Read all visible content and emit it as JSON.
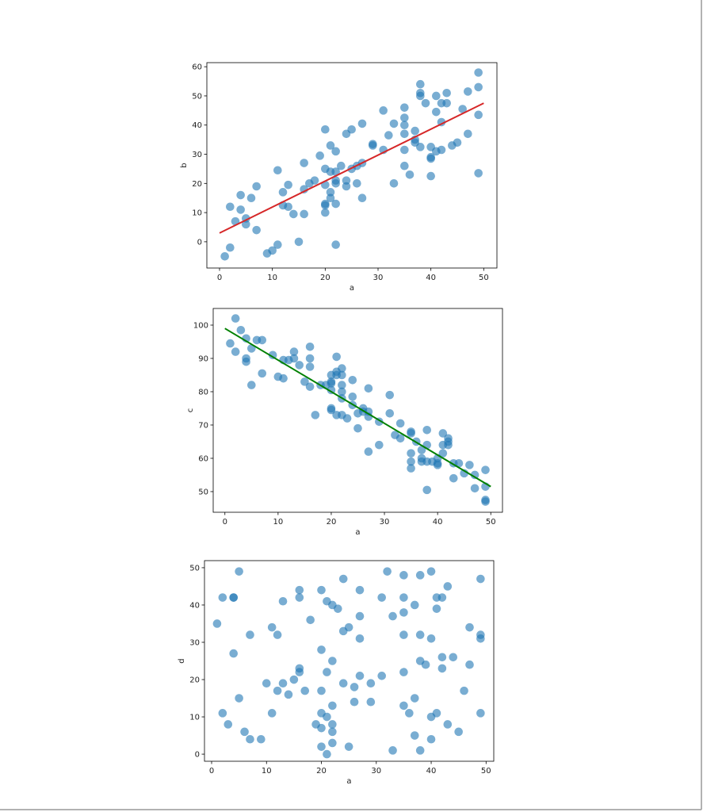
{
  "chart_data": [
    {
      "type": "scatter",
      "xlabel": "a",
      "ylabel": "b",
      "color": "#1f77b4",
      "x": [
        1,
        2,
        2,
        3,
        4,
        4,
        5,
        5,
        6,
        7,
        7,
        9,
        10,
        11,
        11,
        12,
        12,
        13,
        13,
        14,
        15,
        16,
        16,
        16,
        17,
        18,
        19,
        20,
        20,
        20,
        20,
        20,
        20,
        21,
        21,
        21,
        21,
        22,
        22,
        22,
        22,
        22,
        22,
        23,
        24,
        24,
        24,
        25,
        25,
        26,
        26,
        27,
        27,
        27,
        29,
        29,
        31,
        31,
        32,
        33,
        33,
        35,
        35,
        35,
        35,
        35,
        35,
        36,
        37,
        37,
        37,
        38,
        38,
        38,
        38,
        39,
        40,
        40,
        40,
        40,
        41,
        41,
        41,
        42,
        42,
        42,
        43,
        43,
        44,
        45,
        46,
        47,
        47,
        49,
        49,
        49,
        49
      ],
      "values": [
        -5,
        -2,
        12,
        7,
        11,
        16,
        6,
        8,
        15,
        19,
        4,
        -4,
        -3,
        -1,
        24.5,
        12.5,
        17,
        19.5,
        12,
        9.5,
        0,
        9.5,
        18,
        27,
        20,
        21,
        29.5,
        38.5,
        10,
        12.5,
        13,
        19.5,
        25,
        15,
        17,
        24,
        33,
        -1,
        13,
        20,
        21,
        24,
        31,
        26,
        19,
        21,
        37,
        25,
        38.5,
        26,
        20,
        15,
        27,
        40.5,
        33,
        33.5,
        31.5,
        45,
        36.5,
        20,
        40.5,
        26,
        31.5,
        37,
        40,
        42.5,
        46,
        23,
        34,
        35,
        38,
        32.5,
        50,
        54,
        51,
        47.5,
        22.5,
        28.5,
        29,
        32.5,
        31,
        44.5,
        50,
        31.5,
        41,
        47.5,
        47.5,
        51,
        33,
        34,
        45.5,
        37,
        51.5,
        23.5,
        43.5,
        53,
        58
      ],
      "fit_line": {
        "x": [
          0,
          50
        ],
        "y": [
          3,
          47.5
        ],
        "color": "#d62728"
      },
      "xlim": [
        -2.4,
        52.5
      ],
      "ylim": [
        -9,
        61.4
      ],
      "xticks": [
        0,
        10,
        20,
        30,
        40,
        50
      ],
      "yticks": [
        0,
        10,
        20,
        30,
        40,
        50,
        60
      ]
    },
    {
      "type": "scatter",
      "xlabel": "a",
      "ylabel": "c",
      "color": "#1f77b4",
      "x": [
        1,
        2,
        2,
        3,
        4,
        4,
        4,
        5,
        5,
        6,
        7,
        7,
        9,
        10,
        11,
        11,
        12,
        13,
        13,
        14,
        15,
        16,
        16,
        16,
        16,
        17,
        18,
        19,
        20,
        20,
        20,
        20,
        20,
        20,
        21,
        21,
        21,
        21,
        22,
        22,
        22,
        22,
        22,
        22,
        23,
        24,
        24,
        24,
        25,
        25,
        26,
        26,
        27,
        27,
        27,
        27,
        29,
        29,
        31,
        31,
        32,
        33,
        33,
        35,
        35,
        35,
        35,
        35,
        36,
        37,
        37,
        37,
        38,
        38,
        38,
        38,
        39,
        40,
        40,
        40,
        41,
        41,
        41,
        42,
        42,
        42,
        43,
        43,
        44,
        45,
        46,
        47,
        47,
        49,
        49,
        49,
        49
      ],
      "values": [
        94.5,
        102,
        92,
        98.5,
        96,
        89,
        90,
        82,
        93,
        95.5,
        95.5,
        85.5,
        91,
        84.5,
        84,
        89.5,
        89.5,
        92,
        90,
        88,
        83,
        93.5,
        87.5,
        81.5,
        90,
        73,
        82,
        82,
        85,
        83,
        82.5,
        75,
        74.5,
        80.5,
        85,
        90.5,
        73,
        86,
        87,
        85,
        82,
        80,
        78,
        73,
        72,
        83.5,
        78.5,
        76,
        73.5,
        69,
        75,
        74,
        81,
        74,
        62,
        72.5,
        71,
        64,
        79,
        73.5,
        67,
        70.5,
        66,
        68,
        67.5,
        61.5,
        59,
        57,
        65,
        59,
        60,
        62.5,
        68.5,
        64,
        59,
        50.5,
        59,
        60,
        58.5,
        58,
        67.5,
        61.5,
        64,
        64,
        66,
        65,
        54,
        58.5,
        58.5,
        55.5,
        58,
        51,
        55,
        56.5,
        51.5,
        47.5,
        47
      ],
      "fit_line": {
        "x": [
          0,
          50
        ],
        "y": [
          99,
          51.5
        ],
        "color": "#008000"
      },
      "xlim": [
        -2.2,
        52.2
      ],
      "ylim": [
        43.8,
        105
      ],
      "xticks": [
        0,
        10,
        20,
        30,
        40,
        50
      ],
      "yticks": [
        50,
        60,
        70,
        80,
        90,
        100
      ]
    },
    {
      "type": "scatter",
      "xlabel": "a",
      "ylabel": "d",
      "color": "#1f77b4",
      "x": [
        1,
        2,
        2,
        3,
        4,
        4,
        4,
        5,
        5,
        6,
        7,
        7,
        9,
        10,
        11,
        11,
        12,
        12,
        13,
        13,
        14,
        15,
        16,
        16,
        16,
        16,
        17,
        18,
        19,
        20,
        20,
        20,
        20,
        20,
        20,
        21,
        21,
        21,
        21,
        22,
        22,
        22,
        22,
        22,
        22,
        23,
        24,
        24,
        24,
        25,
        25,
        26,
        26,
        27,
        27,
        27,
        27,
        29,
        29,
        31,
        31,
        32,
        33,
        33,
        35,
        35,
        35,
        35,
        35,
        35,
        36,
        37,
        37,
        37,
        38,
        38,
        38,
        38,
        39,
        40,
        40,
        40,
        40,
        41,
        41,
        41,
        42,
        42,
        42,
        43,
        43,
        44,
        45,
        46,
        47,
        47,
        49,
        49,
        49,
        49
      ],
      "values": [
        35,
        42,
        11,
        8,
        42,
        42,
        27,
        49,
        15,
        6,
        32,
        4,
        4,
        19,
        34,
        11,
        32,
        17,
        41,
        19,
        16,
        20,
        44,
        42,
        23,
        22,
        17,
        36,
        8,
        44,
        28,
        17,
        11,
        7,
        2,
        41,
        22,
        10,
        0,
        40,
        25,
        13,
        8,
        6,
        3,
        39,
        47,
        33,
        19,
        34,
        2,
        18,
        14,
        44,
        37,
        31,
        21,
        19,
        14,
        42,
        21,
        49,
        37,
        1,
        48,
        42,
        38,
        32,
        22,
        13,
        11,
        40,
        15,
        5,
        48,
        32,
        25,
        1,
        24,
        49,
        31,
        10,
        4,
        42,
        39,
        11,
        42,
        26,
        23,
        45,
        8,
        26,
        6,
        17,
        34,
        24,
        47,
        32,
        31,
        11
      ],
      "xlim": [
        -1.3,
        51.4
      ],
      "ylim": [
        -1.9,
        51.9
      ],
      "xticks": [
        0,
        10,
        20,
        30,
        40,
        50
      ],
      "yticks": [
        0,
        10,
        20,
        30,
        40,
        50
      ]
    }
  ]
}
